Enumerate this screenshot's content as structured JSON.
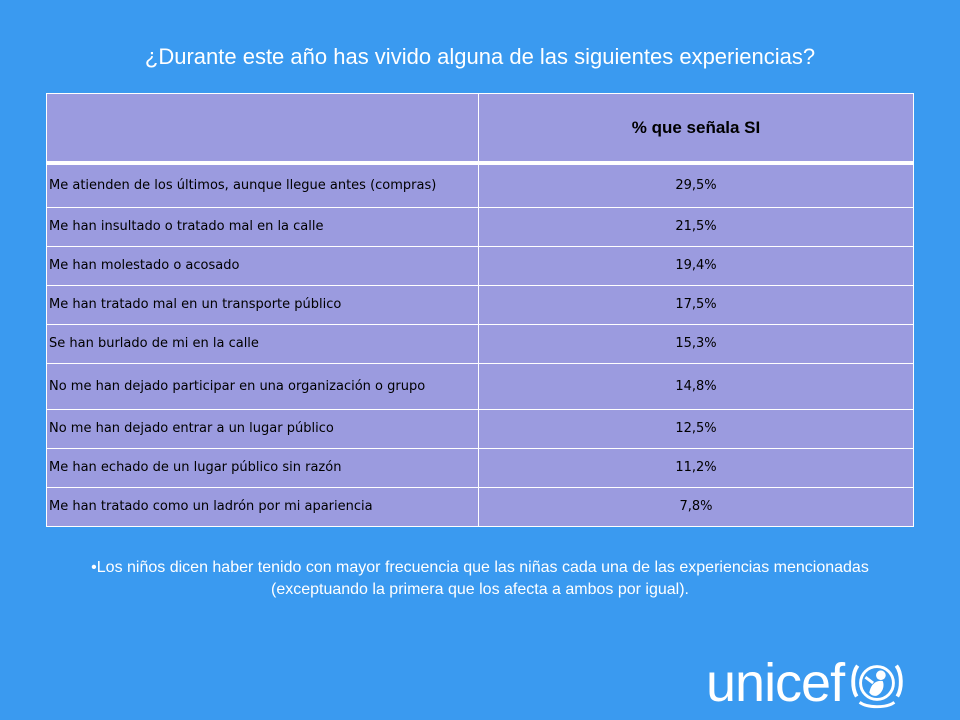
{
  "title": "¿Durante este año has vivido alguna de las siguientes experiencias?",
  "chart_data": {
    "type": "table",
    "title": "¿Durante este año has vivido alguna de las siguientes experiencias?",
    "header": [
      "",
      "% que señala SI"
    ],
    "rows": [
      {
        "label": "Me atienden de los últimos, aunque llegue antes (compras)",
        "value": "29,5%"
      },
      {
        "label": "Me han insultado o tratado mal en la calle",
        "value": "21,5%"
      },
      {
        "label": "Me han molestado o acosado",
        "value": "19,4%"
      },
      {
        "label": "Me han tratado mal en un transporte público",
        "value": "17,5%"
      },
      {
        "label": "Se han burlado de mi en la calle",
        "value": "15,3%"
      },
      {
        "label": "No me han dejado participar en una organización o grupo",
        "value": "14,8%"
      },
      {
        "label": "No me han dejado entrar a un lugar público",
        "value": "12,5%"
      },
      {
        "label": "Me han echado de un lugar público sin razón",
        "value": "11,2%"
      },
      {
        "label": "Me han tratado como un ladrón por mi apariencia",
        "value": "7,8%"
      }
    ],
    "values": [
      29.5,
      21.5,
      19.4,
      17.5,
      15.3,
      14.8,
      12.5,
      11.2,
      7.8
    ]
  },
  "note": "•Los niños dicen haber tenido con mayor frecuencia que las niñas cada una de las experiencias mencionadas (exceptuando la primera que los afecta a ambos por igual).",
  "logo": {
    "text": "unicef"
  }
}
